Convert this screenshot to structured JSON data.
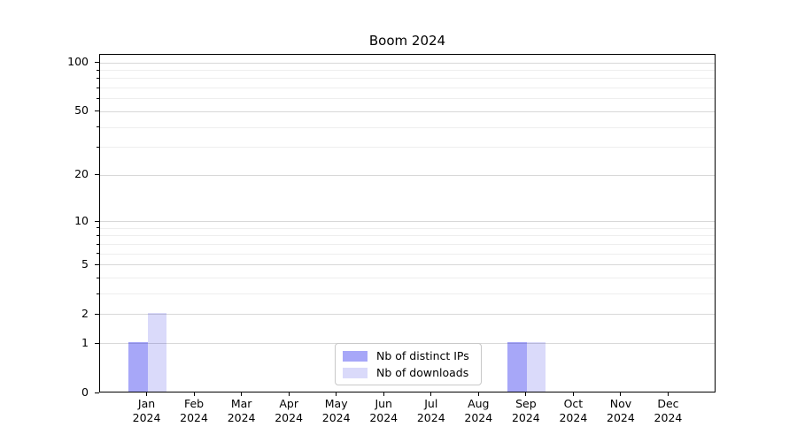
{
  "chart_data": {
    "type": "bar",
    "title": "Boom 2024",
    "categories": [
      "Jan",
      "Feb",
      "Mar",
      "Apr",
      "May",
      "Jun",
      "Jul",
      "Aug",
      "Sep",
      "Oct",
      "Nov",
      "Dec"
    ],
    "year_label": "2024",
    "series": [
      {
        "name": "Nb of distinct IPs",
        "color_solid": "#a7a7f8",
        "color_fill": "rgba(0,0,235,0.345)",
        "values": [
          1,
          0,
          0,
          0,
          0,
          0,
          0,
          0,
          1,
          0,
          0,
          0
        ]
      },
      {
        "name": "Nb of downloads",
        "color_solid": "#dadafa",
        "color_fill": "rgba(0,0,220,0.145)",
        "values": [
          2,
          0,
          0,
          0,
          0,
          0,
          0,
          0,
          1,
          0,
          0,
          0
        ]
      }
    ],
    "y_axis": {
      "scale": "log1p",
      "ticks": [
        0,
        1,
        2,
        5,
        10,
        20,
        50,
        100
      ],
      "minor_ticks": [
        3,
        4,
        6,
        7,
        8,
        9,
        30,
        40,
        60,
        70,
        80,
        90
      ],
      "max": 112
    },
    "x_axis": {
      "tick_labels_line2": "2024"
    },
    "legend": {
      "position": "lower center",
      "entries": [
        "Nb of distinct IPs",
        "Nb of downloads"
      ]
    },
    "style": {
      "grid_major_color": "#d8d8d8",
      "grid_minor_color": "#eeeeee",
      "axis_color": "#000000",
      "background": "#ffffff",
      "legend_border_color": "#c8c8c8"
    }
  }
}
